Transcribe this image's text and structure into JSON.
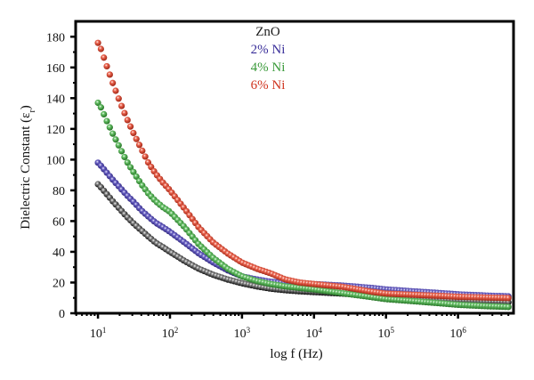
{
  "chart_data": {
    "type": "scatter",
    "title": "",
    "xlabel": "log f (Hz)",
    "ylabel": "Dielectric Constant (ε",
    "ylabel_subscript": "r",
    "ylabel_close": ")",
    "xscale": "log",
    "xlim": [
      4.9,
      5900000
    ],
    "ylim": [
      0,
      190
    ],
    "grid": false,
    "legend_placement": "top-center",
    "x_ticks": [
      {
        "value": 10,
        "base": "10",
        "exp": "1"
      },
      {
        "value": 100,
        "base": "10",
        "exp": "2"
      },
      {
        "value": 1000,
        "base": "10",
        "exp": "3"
      },
      {
        "value": 10000,
        "base": "10",
        "exp": "4"
      },
      {
        "value": 100000,
        "base": "10",
        "exp": "5"
      },
      {
        "value": 1000000,
        "base": "10",
        "exp": "6"
      }
    ],
    "y_ticks": [
      0,
      20,
      40,
      60,
      80,
      100,
      120,
      140,
      160,
      180
    ],
    "anchor_x": [
      10,
      11,
      13,
      16,
      20,
      25,
      32,
      40,
      50,
      63,
      80,
      100,
      160,
      250,
      400,
      630,
      1000,
      1600,
      2500,
      4000,
      6300,
      10000,
      25000,
      63000,
      100000,
      250000,
      630000,
      1000000,
      2500000,
      5000000
    ],
    "series": [
      {
        "name": "ZnO",
        "color": "#1a1a1a",
        "values": [
          84,
          82,
          78,
          73,
          68,
          63,
          58,
          54,
          50,
          46,
          43,
          40,
          34,
          29,
          25,
          22,
          19.5,
          17.5,
          16,
          15,
          14.3,
          13.8,
          12.8,
          11.5,
          10.8,
          9.8,
          8.8,
          8.3,
          7.6,
          7.2
        ]
      },
      {
        "name": "2% Ni",
        "color": "#3a2f9a",
        "values": [
          98,
          96,
          92,
          87,
          82,
          77,
          72,
          67,
          63,
          59,
          56,
          53,
          46,
          39,
          33,
          28,
          24,
          22,
          20.5,
          19.8,
          19.3,
          19,
          18,
          16.5,
          15.5,
          14.2,
          13,
          12.3,
          11.5,
          11
        ]
      },
      {
        "name": "4% Ni",
        "color": "#3a9a3a",
        "values": [
          137,
          134,
          126,
          117,
          108,
          99,
          91,
          84,
          78,
          73,
          69,
          66,
          56,
          45,
          36,
          29,
          24,
          21,
          19,
          17.5,
          16.5,
          15.5,
          13,
          10.5,
          9.2,
          7.8,
          6.3,
          5.5,
          4.6,
          4.1
        ]
      },
      {
        "name": "6% Ni",
        "color": "#d0341f",
        "values": [
          176,
          172,
          162,
          150,
          138,
          127,
          116,
          107,
          98,
          91,
          85,
          80,
          68,
          56,
          46,
          39,
          33,
          29,
          26,
          22,
          20,
          19,
          17.2,
          14,
          12.8,
          12,
          11.2,
          10.7,
          10.2,
          9.9
        ]
      }
    ],
    "legend": [
      {
        "label": "ZnO",
        "color": "#1a1a1a"
      },
      {
        "label": "2% Ni",
        "color": "#3a2f9a"
      },
      {
        "label": "4% Ni",
        "color": "#3a9a3a"
      },
      {
        "label": "6% Ni",
        "color": "#d0341f"
      }
    ]
  }
}
